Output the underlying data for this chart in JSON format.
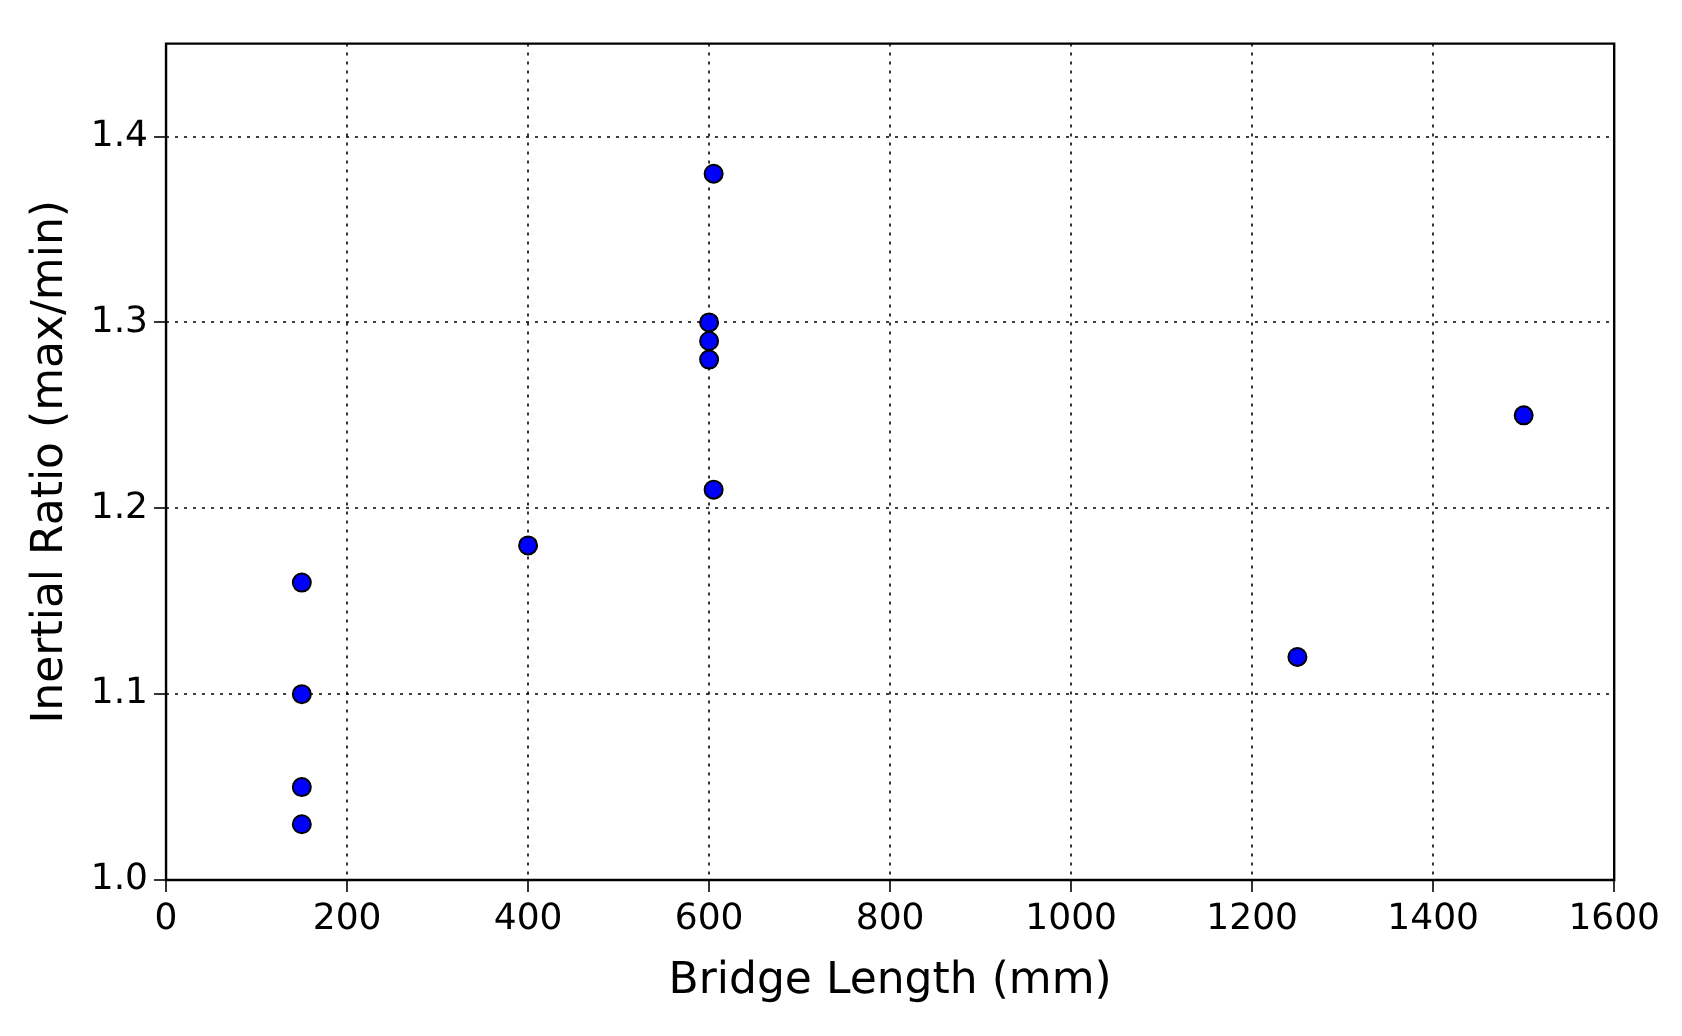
{
  "chart_data": {
    "type": "scatter",
    "xlabel": "Bridge Length (mm)",
    "ylabel": "Inertial Ratio (max/min)",
    "x": [
      150,
      150,
      150,
      150,
      400,
      600,
      600,
      600,
      605,
      605,
      1250,
      1500
    ],
    "series": [
      {
        "color": "#0000ff",
        "values": [
          1.16,
          1.1,
          1.05,
          1.03,
          1.18,
          1.3,
          1.29,
          1.28,
          1.38,
          1.21,
          1.12,
          1.25
        ]
      }
    ],
    "xlim": [
      0,
      1600
    ],
    "xticks": [
      0,
      200,
      400,
      600,
      800,
      1000,
      1200,
      1400,
      1600
    ],
    "ylim": [
      1.0,
      1.45
    ],
    "yticks": [
      {
        "value": 1.0,
        "label": "1.0"
      },
      1.1,
      1.2,
      1.3,
      1.4
    ],
    "grid": true,
    "marker": "circle",
    "legend": false
  }
}
